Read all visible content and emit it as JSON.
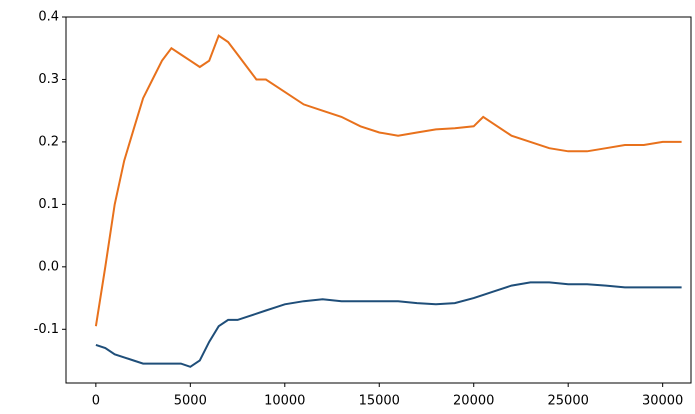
{
  "chart_data": {
    "type": "line",
    "x": [
      0,
      500,
      1000,
      1500,
      2000,
      2500,
      3000,
      3500,
      4000,
      4500,
      5000,
      5500,
      6000,
      6500,
      7000,
      7500,
      8000,
      8500,
      9000,
      9500,
      10000,
      11000,
      12000,
      13000,
      14000,
      15000,
      16000,
      17000,
      18000,
      19000,
      20000,
      20500,
      21000,
      22000,
      23000,
      24000,
      25000,
      26000,
      27000,
      28000,
      29000,
      30000,
      31000
    ],
    "series": [
      {
        "color": "#e8711c",
        "values": [
          -0.095,
          0.0,
          0.1,
          0.17,
          0.22,
          0.27,
          0.3,
          0.33,
          0.35,
          0.34,
          0.33,
          0.32,
          0.33,
          0.37,
          0.36,
          0.34,
          0.32,
          0.3,
          0.3,
          0.29,
          0.28,
          0.26,
          0.25,
          0.24,
          0.225,
          0.215,
          0.21,
          0.215,
          0.22,
          0.222,
          0.225,
          0.24,
          0.23,
          0.21,
          0.2,
          0.19,
          0.185,
          0.185,
          0.19,
          0.195,
          0.195,
          0.2,
          0.2
        ]
      },
      {
        "color": "#1f4e79",
        "values": [
          -0.125,
          -0.13,
          -0.14,
          -0.145,
          -0.15,
          -0.155,
          -0.155,
          -0.155,
          -0.155,
          -0.155,
          -0.16,
          -0.15,
          -0.12,
          -0.095,
          -0.085,
          -0.085,
          -0.08,
          -0.075,
          -0.07,
          -0.065,
          -0.06,
          -0.055,
          -0.052,
          -0.055,
          -0.055,
          -0.055,
          -0.055,
          -0.058,
          -0.06,
          -0.058,
          -0.05,
          -0.045,
          -0.04,
          -0.03,
          -0.025,
          -0.025,
          -0.028,
          -0.028,
          -0.03,
          -0.033,
          -0.033,
          -0.033,
          -0.033
        ]
      }
    ],
    "xlim": [
      -1580,
      31500
    ],
    "ylim": [
      -0.186,
      0.4
    ],
    "xticks": [
      0,
      5000,
      10000,
      15000,
      20000,
      25000,
      30000
    ],
    "yticks": [
      -0.1,
      {
        "value": 0.0,
        "label": "0.0"
      },
      0.1,
      0.2,
      0.3,
      0.4
    ]
  }
}
